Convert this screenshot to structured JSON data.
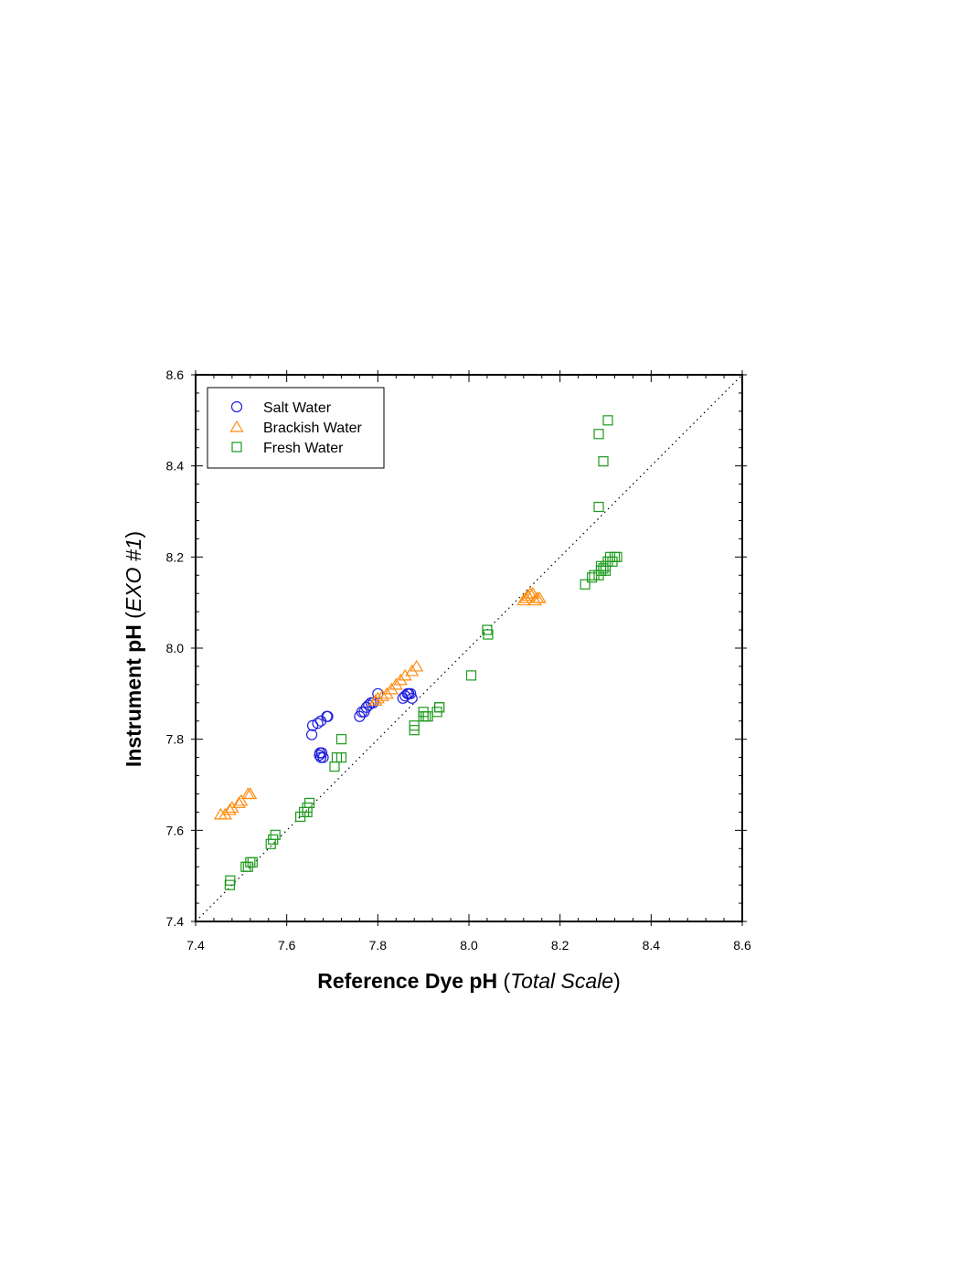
{
  "chart_data": {
    "type": "scatter",
    "xlabel": {
      "main": "Reference Dye pH",
      "paren_open": " (",
      "italic": "Total Scale",
      "paren_close": ")"
    },
    "ylabel": {
      "main": "Instrument pH",
      "paren_open": " (",
      "italic": "EXO #1",
      "paren_close": ")"
    },
    "xlim": [
      7.4,
      8.6
    ],
    "ylim": [
      7.4,
      8.6
    ],
    "xticks": [
      "7.4",
      "7.6",
      "7.8",
      "8.0",
      "8.2",
      "8.4",
      "8.6"
    ],
    "yticks": [
      "7.4",
      "7.6",
      "7.8",
      "8.0",
      "8.2",
      "8.4",
      "8.6"
    ],
    "reference_line": {
      "style": "dotted",
      "slope": 1,
      "intercept": 0
    },
    "legend_position": "top-left",
    "series": [
      {
        "name": "Salt Water",
        "marker": "circle",
        "color": "#1f1fdc",
        "points": [
          [
            7.655,
            7.81
          ],
          [
            7.657,
            7.83
          ],
          [
            7.668,
            7.835
          ],
          [
            7.675,
            7.84
          ],
          [
            7.688,
            7.85
          ],
          [
            7.69,
            7.85
          ],
          [
            7.672,
            7.765
          ],
          [
            7.677,
            7.77
          ],
          [
            7.675,
            7.76
          ],
          [
            7.68,
            7.76
          ],
          [
            7.673,
            7.77
          ],
          [
            7.76,
            7.85
          ],
          [
            7.765,
            7.86
          ],
          [
            7.77,
            7.86
          ],
          [
            7.775,
            7.87
          ],
          [
            7.78,
            7.875
          ],
          [
            7.785,
            7.88
          ],
          [
            7.79,
            7.88
          ],
          [
            7.8,
            7.9
          ],
          [
            7.855,
            7.89
          ],
          [
            7.86,
            7.895
          ],
          [
            7.865,
            7.9
          ],
          [
            7.868,
            7.9
          ],
          [
            7.872,
            7.9
          ],
          [
            7.875,
            7.89
          ]
        ]
      },
      {
        "name": "Brackish Water",
        "marker": "triangle",
        "color": "#ff8c10",
        "points": [
          [
            7.455,
            7.635
          ],
          [
            7.465,
            7.635
          ],
          [
            7.475,
            7.645
          ],
          [
            7.48,
            7.65
          ],
          [
            7.495,
            7.66
          ],
          [
            7.5,
            7.665
          ],
          [
            7.515,
            7.68
          ],
          [
            7.52,
            7.68
          ],
          [
            7.795,
            7.885
          ],
          [
            7.8,
            7.89
          ],
          [
            7.81,
            7.895
          ],
          [
            7.82,
            7.9
          ],
          [
            7.83,
            7.91
          ],
          [
            7.84,
            7.92
          ],
          [
            7.85,
            7.93
          ],
          [
            7.86,
            7.94
          ],
          [
            7.875,
            7.95
          ],
          [
            7.885,
            7.96
          ],
          [
            8.12,
            8.105
          ],
          [
            8.125,
            8.11
          ],
          [
            8.13,
            8.115
          ],
          [
            8.135,
            8.12
          ],
          [
            8.14,
            8.12
          ],
          [
            8.145,
            8.105
          ],
          [
            8.15,
            8.11
          ],
          [
            8.155,
            8.11
          ]
        ]
      },
      {
        "name": "Fresh Water",
        "marker": "square",
        "color": "#1c9a1c",
        "points": [
          [
            7.475,
            7.48
          ],
          [
            7.476,
            7.49
          ],
          [
            7.51,
            7.52
          ],
          [
            7.515,
            7.52
          ],
          [
            7.52,
            7.53
          ],
          [
            7.525,
            7.53
          ],
          [
            7.565,
            7.57
          ],
          [
            7.57,
            7.58
          ],
          [
            7.575,
            7.59
          ],
          [
            7.63,
            7.63
          ],
          [
            7.638,
            7.64
          ],
          [
            7.645,
            7.64
          ],
          [
            7.645,
            7.65
          ],
          [
            7.65,
            7.66
          ],
          [
            7.705,
            7.74
          ],
          [
            7.71,
            7.76
          ],
          [
            7.72,
            7.76
          ],
          [
            7.72,
            7.8
          ],
          [
            7.88,
            7.82
          ],
          [
            7.88,
            7.83
          ],
          [
            7.9,
            7.85
          ],
          [
            7.9,
            7.86
          ],
          [
            7.905,
            7.85
          ],
          [
            7.91,
            7.85
          ],
          [
            7.93,
            7.86
          ],
          [
            7.935,
            7.87
          ],
          [
            7.935,
            7.87
          ],
          [
            8.005,
            7.94
          ],
          [
            8.04,
            8.04
          ],
          [
            8.042,
            8.03
          ],
          [
            8.255,
            8.14
          ],
          [
            8.27,
            8.155
          ],
          [
            8.275,
            8.16
          ],
          [
            8.285,
            8.16
          ],
          [
            8.29,
            8.17
          ],
          [
            8.295,
            8.175
          ],
          [
            8.3,
            8.18
          ],
          [
            8.305,
            8.19
          ],
          [
            8.31,
            8.2
          ],
          [
            8.315,
            8.19
          ],
          [
            8.32,
            8.2
          ],
          [
            8.325,
            8.2
          ],
          [
            8.29,
            8.18
          ],
          [
            8.3,
            8.17
          ],
          [
            8.285,
            8.31
          ],
          [
            8.295,
            8.41
          ],
          [
            8.285,
            8.47
          ],
          [
            8.305,
            8.5
          ]
        ]
      }
    ]
  }
}
